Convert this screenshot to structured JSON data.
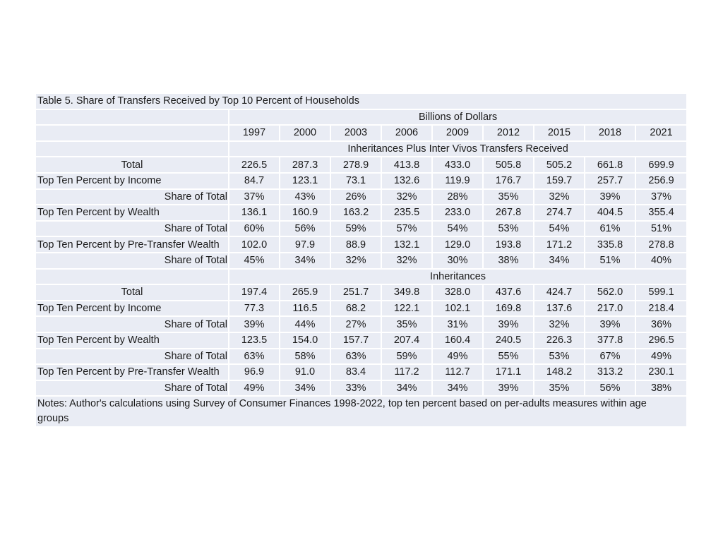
{
  "title": "Table 5. Share of Transfers Received by Top 10 Percent of Households",
  "units_header": "Billions of Dollars",
  "years": [
    "1997",
    "2000",
    "2003",
    "2006",
    "2009",
    "2012",
    "2015",
    "2018",
    "2021"
  ],
  "sections": [
    {
      "header": "Inheritances Plus Inter Vivos Transfers Received",
      "rows": [
        {
          "label": "Total",
          "align": "center",
          "values": [
            "226.5",
            "287.3",
            "278.9",
            "413.8",
            "433.0",
            "505.8",
            "505.2",
            "661.8",
            "699.9"
          ]
        },
        {
          "label": "Top Ten Percent by Income",
          "align": "left",
          "values": [
            "84.7",
            "123.1",
            "73.1",
            "132.6",
            "119.9",
            "176.7",
            "159.7",
            "257.7",
            "256.9"
          ]
        },
        {
          "label": "Share of Total",
          "align": "right",
          "values": [
            "37%",
            "43%",
            "26%",
            "32%",
            "28%",
            "35%",
            "32%",
            "39%",
            "37%"
          ]
        },
        {
          "label": "Top Ten Percent by Wealth",
          "align": "left",
          "values": [
            "136.1",
            "160.9",
            "163.2",
            "235.5",
            "233.0",
            "267.8",
            "274.7",
            "404.5",
            "355.4"
          ]
        },
        {
          "label": "Share of Total",
          "align": "right",
          "values": [
            "60%",
            "56%",
            "59%",
            "57%",
            "54%",
            "53%",
            "54%",
            "61%",
            "51%"
          ]
        },
        {
          "label": "Top Ten Percent by Pre-Transfer Wealth",
          "align": "left",
          "values": [
            "102.0",
            "97.9",
            "88.9",
            "132.1",
            "129.0",
            "193.8",
            "171.2",
            "335.8",
            "278.8"
          ]
        },
        {
          "label": "Share of Total",
          "align": "right",
          "values": [
            "45%",
            "34%",
            "32%",
            "32%",
            "30%",
            "38%",
            "34%",
            "51%",
            "40%"
          ]
        }
      ]
    },
    {
      "header": "Inheritances",
      "rows": [
        {
          "label": "Total",
          "align": "center",
          "values": [
            "197.4",
            "265.9",
            "251.7",
            "349.8",
            "328.0",
            "437.6",
            "424.7",
            "562.0",
            "599.1"
          ]
        },
        {
          "label": "Top Ten Percent by Income",
          "align": "left",
          "values": [
            "77.3",
            "116.5",
            "68.2",
            "122.1",
            "102.1",
            "169.8",
            "137.6",
            "217.0",
            "218.4"
          ]
        },
        {
          "label": "Share of Total",
          "align": "right",
          "values": [
            "39%",
            "44%",
            "27%",
            "35%",
            "31%",
            "39%",
            "32%",
            "39%",
            "36%"
          ]
        },
        {
          "label": "Top Ten Percent by Wealth",
          "align": "left",
          "values": [
            "123.5",
            "154.0",
            "157.7",
            "207.4",
            "160.4",
            "240.5",
            "226.3",
            "377.8",
            "296.5"
          ]
        },
        {
          "label": "Share of Total",
          "align": "right",
          "values": [
            "63%",
            "58%",
            "63%",
            "59%",
            "49%",
            "55%",
            "53%",
            "67%",
            "49%"
          ]
        },
        {
          "label": "Top Ten Percent by Pre-Transfer Wealth",
          "align": "left",
          "values": [
            "96.9",
            "91.0",
            "83.4",
            "117.2",
            "112.7",
            "171.1",
            "148.2",
            "313.2",
            "230.1"
          ]
        },
        {
          "label": "Share of Total",
          "align": "right",
          "values": [
            "49%",
            "34%",
            "33%",
            "34%",
            "34%",
            "39%",
            "35%",
            "56%",
            "38%"
          ]
        }
      ]
    }
  ],
  "notes": "Notes: Author's calculations using Survey of Consumer Finances 1998-2022, top ten percent based on per-adults measures within age groups",
  "colors": {
    "cell_background": "#e9ecf4",
    "grid_lines": "#ffffff",
    "text": "#1a1a1a"
  }
}
